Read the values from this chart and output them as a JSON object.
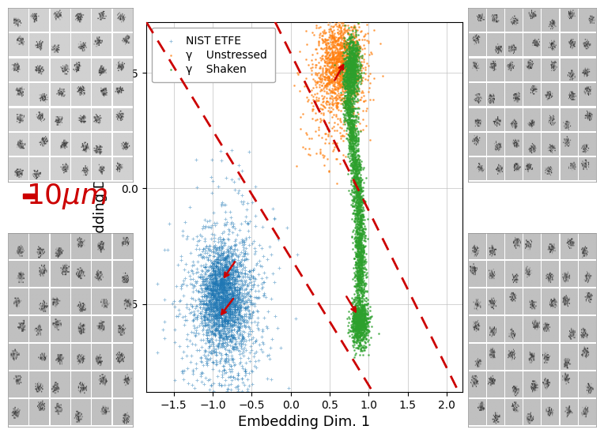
{
  "title": "",
  "xlabel": "Embedding Dim. 1",
  "ylabel": "Embedding Dim. 2",
  "xlim": [
    -1.85,
    2.2
  ],
  "ylim": [
    -0.88,
    0.72
  ],
  "xticks": [
    -1.5,
    -1.0,
    -0.5,
    0.0,
    0.5,
    1.0,
    1.5,
    2.0
  ],
  "yticks": [
    -0.5,
    0.0,
    0.5
  ],
  "legend_labels": [
    "NIST ETFE",
    "γ    Unstressed",
    "γ    Shaken"
  ],
  "legend_colors": [
    "#1f77b4",
    "#ff7f0e",
    "#2ca02c"
  ],
  "scale_bar_color": "#cc0000",
  "background_color": "#ffffff",
  "plot_bg_color": "#ffffff",
  "grid_color": "#c0c0c0",
  "font_size_label": 13,
  "font_size_legend": 10,
  "font_size_tick": 10
}
